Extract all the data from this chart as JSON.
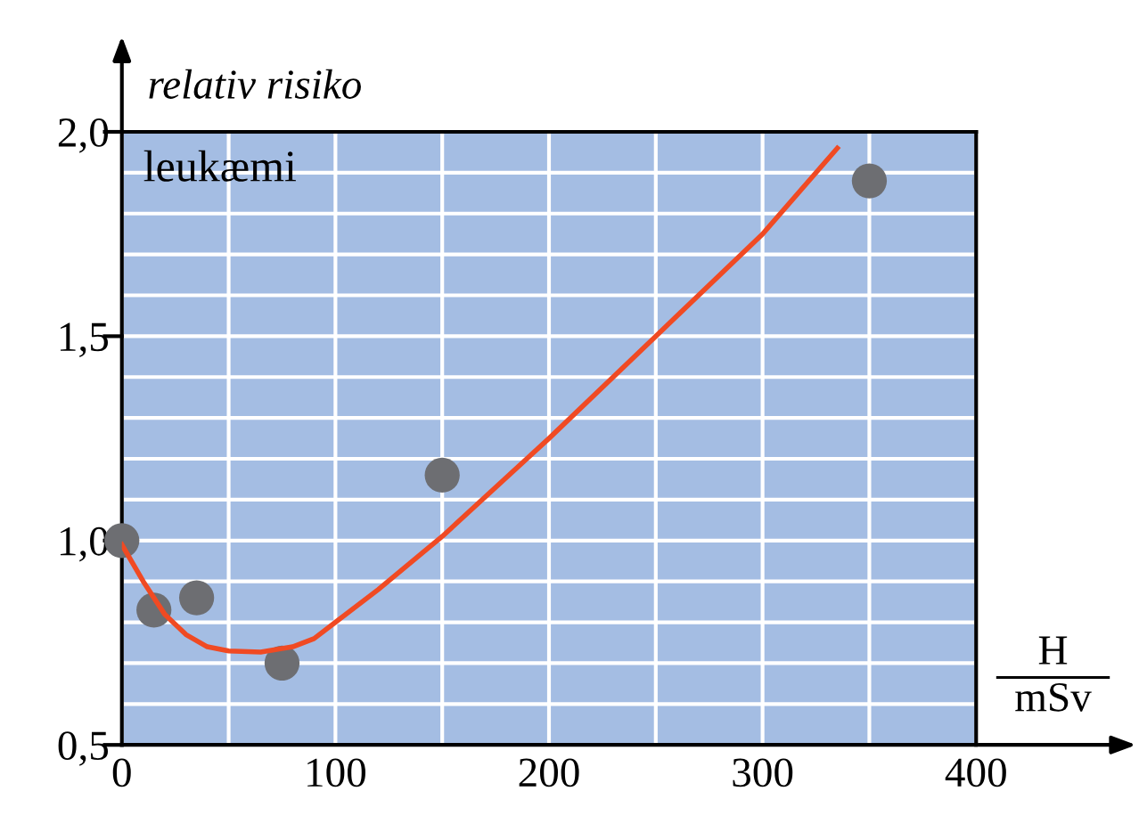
{
  "chart_data": {
    "type": "scatter",
    "ylabel": "relativ risiko",
    "xlabel": "H\nmSv",
    "annotations": [
      "leukæmi"
    ],
    "xlim": [
      0,
      400
    ],
    "ylim": [
      0.5,
      2.0
    ],
    "xticks": [
      0,
      {
        "value": 50,
        "label": null
      },
      100,
      {
        "value": 150,
        "label": null
      },
      200,
      {
        "value": 250,
        "label": null
      },
      300,
      {
        "value": 350,
        "label": null
      },
      400
    ],
    "yticks": [
      {
        "value": 0.5,
        "label": "0,5"
      },
      {
        "value": 0.6,
        "label": null
      },
      {
        "value": 0.7,
        "label": null
      },
      {
        "value": 0.8,
        "label": null
      },
      {
        "value": 0.9,
        "label": null
      },
      {
        "value": 1.0,
        "label": "1,0"
      },
      {
        "value": 1.1,
        "label": null
      },
      {
        "value": 1.2,
        "label": null
      },
      {
        "value": 1.3,
        "label": null
      },
      {
        "value": 1.4,
        "label": null
      },
      {
        "value": 1.5,
        "label": "1,5"
      },
      {
        "value": 1.6,
        "label": null
      },
      {
        "value": 1.7,
        "label": null
      },
      {
        "value": 1.8,
        "label": null
      },
      {
        "value": 1.9,
        "label": null
      },
      {
        "value": 2.0,
        "label": "2,0"
      }
    ],
    "grid": true,
    "series": [
      {
        "marker": "circle",
        "color": "#6d6e72",
        "x": [
          0,
          15,
          35,
          75,
          150,
          350
        ],
        "values": [
          1.0,
          0.83,
          0.86,
          0.7,
          1.16,
          1.88
        ]
      },
      {
        "type": "line",
        "color": "#f04a23",
        "marker": "none",
        "x": [
          0,
          10,
          20,
          30,
          40,
          50,
          65,
          80,
          90,
          100,
          120,
          150,
          200,
          250,
          300,
          335
        ],
        "values": [
          0.99,
          0.9,
          0.82,
          0.77,
          0.74,
          0.73,
          0.727,
          0.74,
          0.76,
          0.8,
          0.88,
          1.01,
          1.25,
          1.5,
          1.75,
          1.96
        ]
      }
    ]
  }
}
